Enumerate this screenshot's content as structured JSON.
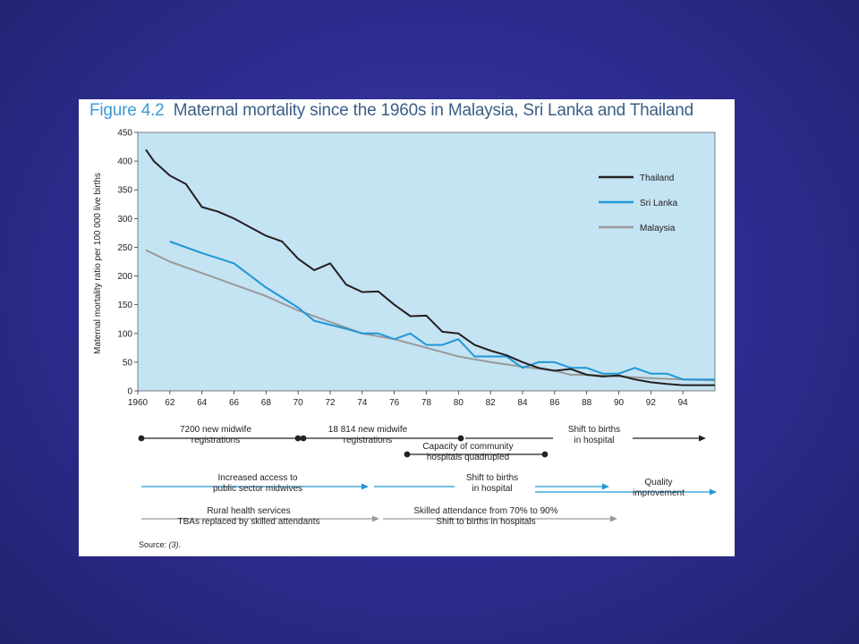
{
  "figure": {
    "number": "Figure 4.2",
    "title": "Maternal mortality since the 1960s in Malaysia, Sri Lanka and Thailand",
    "source_label": "Source:",
    "source_ref": "(3)."
  },
  "colors": {
    "background": "#2c2c8e",
    "plot_bg": "#c4e3f3",
    "thailand": "#231f20",
    "srilanka": "#2196d6",
    "malaysia": "#9a9a9a"
  },
  "chart_data": {
    "type": "line",
    "ylabel": "Maternal mortality ratio per 100 000 live births",
    "ylim": [
      0,
      450
    ],
    "yticks": [
      0,
      50,
      100,
      150,
      200,
      250,
      300,
      350,
      400,
      450
    ],
    "xlim": [
      1960,
      1996
    ],
    "xticks": [
      {
        "v": 1960,
        "label": "1960"
      },
      {
        "v": 1962,
        "label": "62"
      },
      {
        "v": 1964,
        "label": "64"
      },
      {
        "v": 1966,
        "label": "66"
      },
      {
        "v": 1968,
        "label": "68"
      },
      {
        "v": 1970,
        "label": "70"
      },
      {
        "v": 1972,
        "label": "72"
      },
      {
        "v": 1974,
        "label": "74"
      },
      {
        "v": 1976,
        "label": "76"
      },
      {
        "v": 1978,
        "label": "78"
      },
      {
        "v": 1980,
        "label": "80"
      },
      {
        "v": 1982,
        "label": "82"
      },
      {
        "v": 1984,
        "label": "84"
      },
      {
        "v": 1986,
        "label": "86"
      },
      {
        "v": 1988,
        "label": "88"
      },
      {
        "v": 1990,
        "label": "90"
      },
      {
        "v": 1992,
        "label": "92"
      },
      {
        "v": 1994,
        "label": "94"
      }
    ],
    "grid": false,
    "legend_position": "top-right",
    "series": [
      {
        "name": "Thailand",
        "color": "#231f20",
        "x": [
          1960.5,
          1961,
          1962,
          1963,
          1964,
          1965,
          1966,
          1967,
          1968,
          1969,
          1970,
          1971,
          1972,
          1973,
          1974,
          1975,
          1976,
          1977,
          1978,
          1979,
          1980,
          1981,
          1982,
          1983,
          1984,
          1985,
          1986,
          1987,
          1988,
          1989,
          1990,
          1991,
          1992,
          1993,
          1994,
          1995,
          1996
        ],
        "y": [
          420,
          400,
          375,
          360,
          320,
          312,
          300,
          285,
          270,
          260,
          230,
          210,
          222,
          185,
          172,
          173,
          150,
          130,
          131,
          103,
          100,
          80,
          70,
          62,
          50,
          40,
          35,
          38,
          28,
          25,
          27,
          20,
          15,
          12,
          10,
          10,
          10
        ]
      },
      {
        "name": "Sri Lanka",
        "color": "#2196d6",
        "x": [
          1962,
          1964,
          1966,
          1968,
          1970,
          1971,
          1972,
          1973,
          1974,
          1975,
          1976,
          1977,
          1978,
          1979,
          1980,
          1981,
          1982,
          1983,
          1984,
          1985,
          1986,
          1987,
          1988,
          1989,
          1990,
          1991,
          1992,
          1993,
          1994,
          1995,
          1996
        ],
        "y": [
          260,
          240,
          222,
          180,
          145,
          122,
          115,
          108,
          100,
          100,
          90,
          100,
          80,
          80,
          90,
          60,
          60,
          60,
          40,
          50,
          50,
          40,
          40,
          30,
          30,
          40,
          30,
          30,
          20,
          20,
          20
        ]
      },
      {
        "name": "Malaysia",
        "color": "#9a9a9a",
        "x": [
          1960.5,
          1962,
          1964,
          1966,
          1968,
          1970,
          1972,
          1974,
          1976,
          1978,
          1980,
          1982,
          1984,
          1986,
          1987,
          1988,
          1990,
          1992,
          1994,
          1996
        ],
        "y": [
          245,
          225,
          205,
          185,
          165,
          140,
          120,
          100,
          90,
          75,
          60,
          50,
          42,
          35,
          28,
          28,
          25,
          22,
          20,
          18
        ]
      }
    ]
  },
  "timeline": {
    "thailand_1": "7200 new midwife\nregistrations",
    "thailand_2": "18 814 new midwife\nregistrations",
    "thailand_3": "Shift to births\nin hospital",
    "thailand_4": "Capacity of community\nhospitals quadrupled",
    "srilanka_1": "Increased access to\npublic sector midwives",
    "srilanka_2": "Shift to births\nin hospital",
    "srilanka_3": "Quality\nimprovement",
    "malaysia_1": "Rural health services\nTBAs replaced by skilled attendants",
    "malaysia_2": "Skilled attendance from 70% to 90%\nShift to births in hospitals"
  }
}
